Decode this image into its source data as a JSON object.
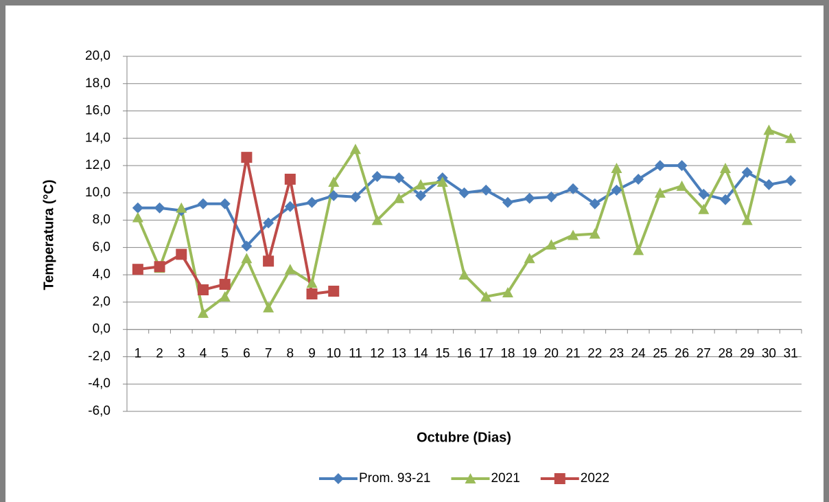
{
  "chart_data": {
    "type": "line",
    "ylabel": "Temperatura  (°C)",
    "xlabel": "Octubre (Dias)",
    "categories": [
      "1",
      "2",
      "3",
      "4",
      "5",
      "6",
      "7",
      "8",
      "9",
      "10",
      "11",
      "12",
      "13",
      "14",
      "15",
      "16",
      "17",
      "18",
      "19",
      "20",
      "21",
      "22",
      "23",
      "24",
      "25",
      "26",
      "27",
      "28",
      "29",
      "30",
      "31"
    ],
    "series": [
      {
        "name": "Prom. 93-21",
        "color": "#4a7ebb",
        "marker": "diamond",
        "values": [
          8.9,
          8.9,
          8.7,
          9.2,
          9.2,
          6.1,
          7.8,
          9.0,
          9.3,
          9.8,
          9.7,
          11.2,
          11.1,
          9.8,
          11.1,
          10.0,
          10.2,
          9.3,
          9.6,
          9.7,
          10.3,
          9.2,
          10.2,
          11.0,
          12.0,
          12.0,
          9.9,
          9.5,
          11.5,
          10.6,
          10.9
        ]
      },
      {
        "name": "2021",
        "color": "#9bbb59",
        "marker": "triangle",
        "values": [
          8.2,
          4.5,
          8.9,
          1.2,
          2.4,
          5.2,
          1.6,
          4.4,
          3.4,
          10.8,
          13.2,
          8.0,
          9.6,
          10.6,
          10.8,
          4.0,
          2.4,
          2.7,
          5.2,
          6.2,
          6.9,
          7.0,
          11.8,
          5.8,
          10.0,
          10.5,
          8.8,
          11.8,
          8.0,
          14.6,
          14.0
        ]
      },
      {
        "name": "2022",
        "color": "#be4b48",
        "marker": "square",
        "values": [
          4.4,
          4.6,
          5.5,
          2.9,
          3.3,
          12.6,
          5.0,
          11.0,
          2.6,
          2.8,
          null,
          null,
          null,
          null,
          null,
          null,
          null,
          null,
          null,
          null,
          null,
          null,
          null,
          null,
          null,
          null,
          null,
          null,
          null,
          null,
          null
        ]
      }
    ],
    "ylim": [
      -6,
      20
    ],
    "yticks": [
      {
        "value": -6,
        "label": "-6,0"
      },
      {
        "value": -4,
        "label": "-4,0"
      },
      {
        "value": -2,
        "label": "-2,0"
      },
      {
        "value": 0,
        "label": "0,0"
      },
      {
        "value": 2,
        "label": "2,0"
      },
      {
        "value": 4,
        "label": "4,0"
      },
      {
        "value": 6,
        "label": "6,0"
      },
      {
        "value": 8,
        "label": "8,0"
      },
      {
        "value": 10,
        "label": "10,0"
      },
      {
        "value": 12,
        "label": "12,0"
      },
      {
        "value": 14,
        "label": "14,0"
      },
      {
        "value": 16,
        "label": "16,0"
      },
      {
        "value": 18,
        "label": "18,0"
      },
      {
        "value": 20,
        "label": "20,0"
      }
    ],
    "grid": true,
    "legend": "bottom"
  }
}
